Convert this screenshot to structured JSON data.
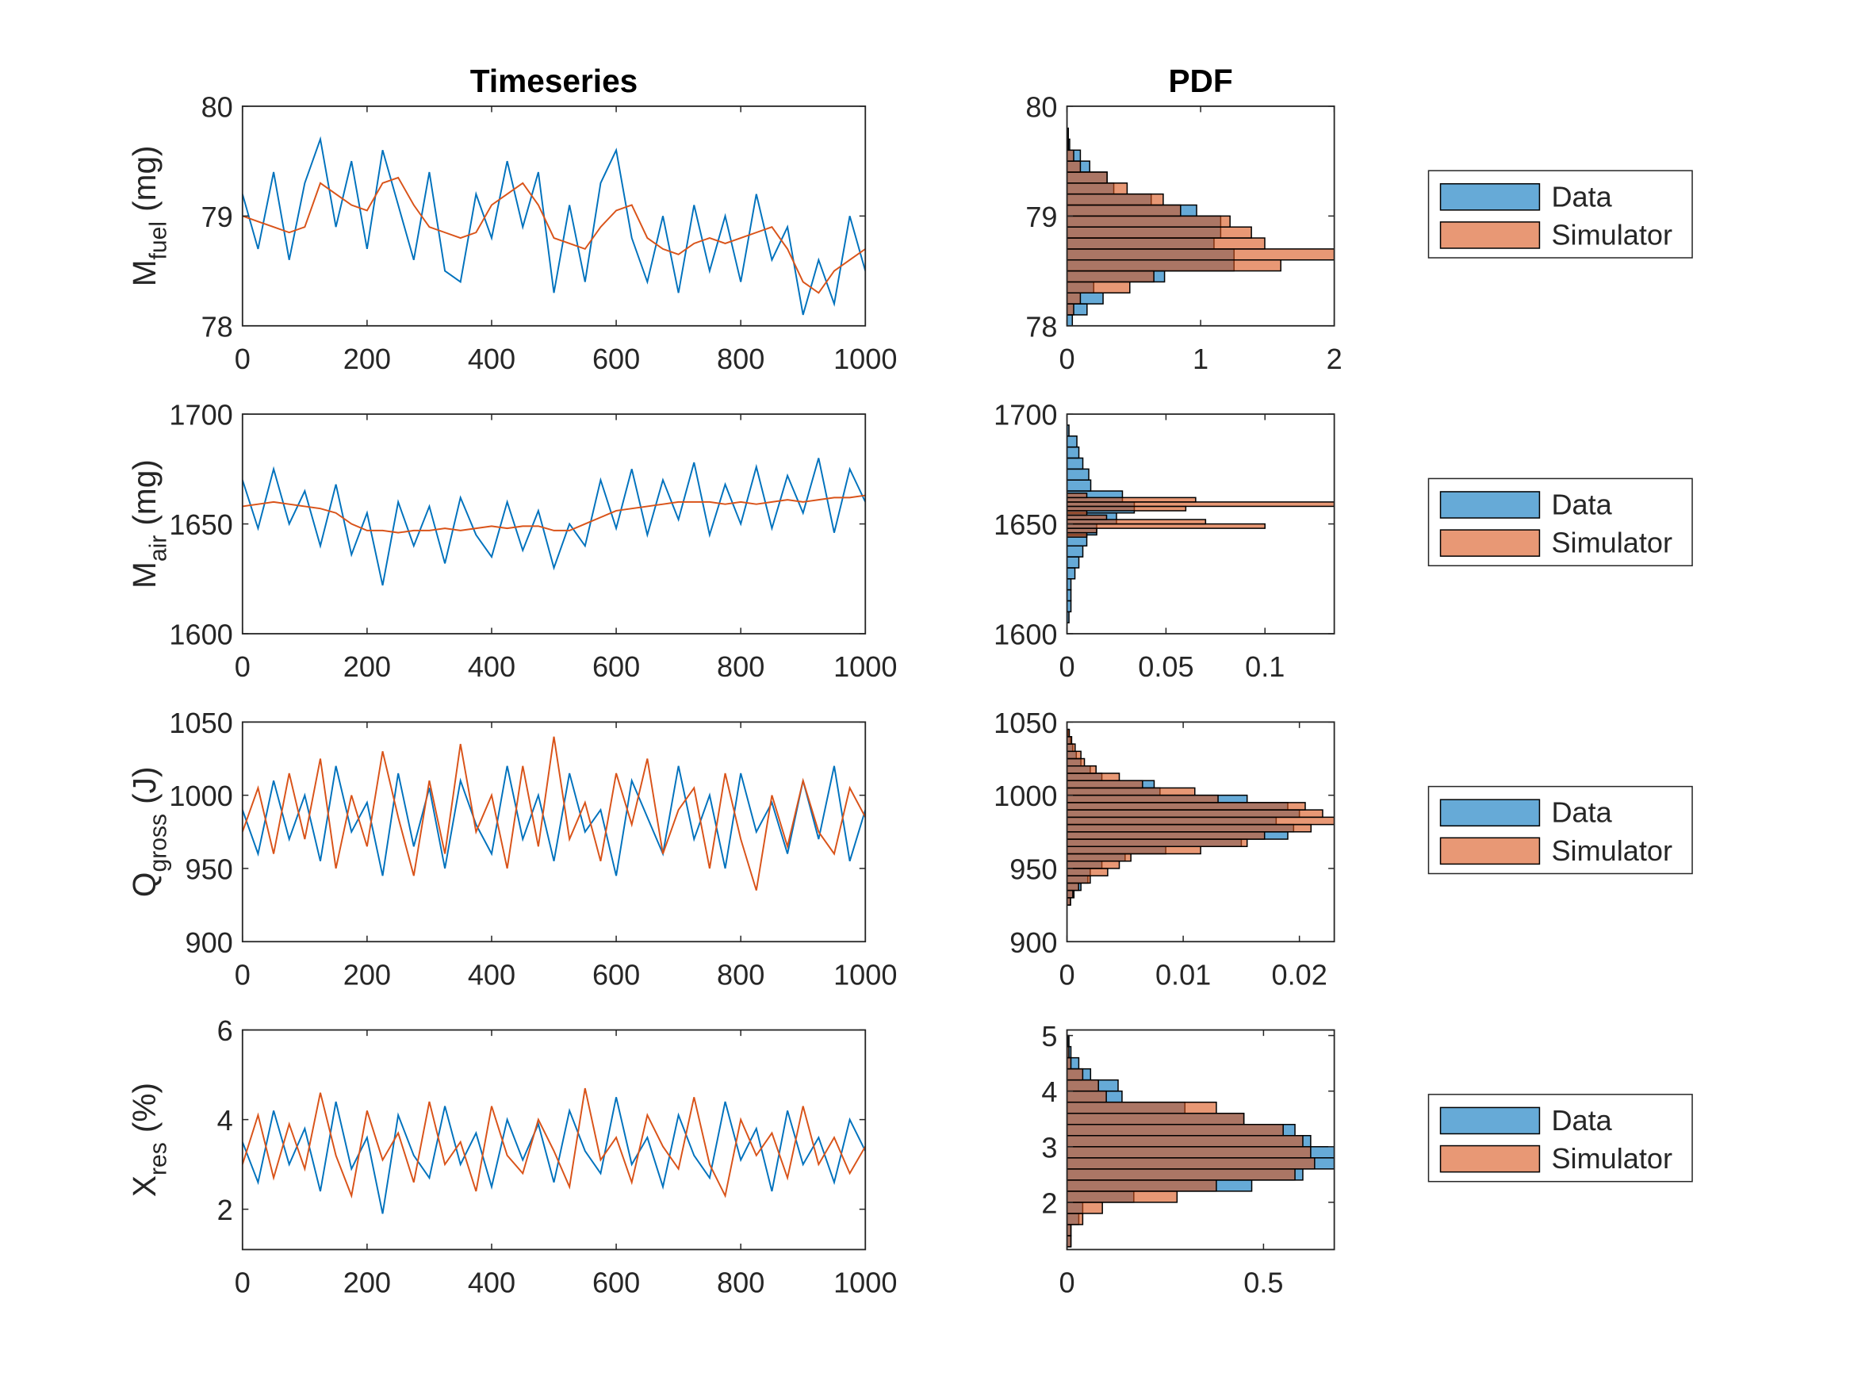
{
  "chart_data": [
    {
      "type": "line",
      "title": "Timeseries",
      "ylabel": {
        "main": "M",
        "sub": "fuel",
        "unit": "(mg)"
      },
      "x": [
        0,
        25,
        50,
        75,
        100,
        125,
        150,
        175,
        200,
        225,
        250,
        275,
        300,
        325,
        350,
        375,
        400,
        425,
        450,
        475,
        500,
        525,
        550,
        575,
        600,
        625,
        650,
        675,
        700,
        725,
        750,
        775,
        800,
        825,
        850,
        875,
        900,
        925,
        950,
        975,
        1000
      ],
      "series": [
        {
          "color": "#0072BD",
          "values": [
            79.2,
            78.7,
            79.4,
            78.6,
            79.3,
            79.7,
            78.9,
            79.5,
            78.7,
            79.6,
            79.1,
            78.6,
            79.4,
            78.5,
            78.4,
            79.2,
            78.8,
            79.5,
            78.9,
            79.4,
            78.3,
            79.1,
            78.4,
            79.3,
            79.6,
            78.8,
            78.4,
            79.0,
            78.3,
            79.1,
            78.5,
            79.0,
            78.4,
            79.2,
            78.6,
            78.9,
            78.1,
            78.6,
            78.2,
            79.0,
            78.5
          ]
        },
        {
          "color": "#D95319",
          "values": [
            79.0,
            78.95,
            78.9,
            78.85,
            78.9,
            79.3,
            79.2,
            79.1,
            79.05,
            79.3,
            79.35,
            79.1,
            78.9,
            78.85,
            78.8,
            78.85,
            79.1,
            79.2,
            79.3,
            79.1,
            78.8,
            78.75,
            78.7,
            78.9,
            79.05,
            79.1,
            78.8,
            78.7,
            78.65,
            78.75,
            78.8,
            78.75,
            78.8,
            78.85,
            78.9,
            78.7,
            78.4,
            78.3,
            78.5,
            78.6,
            78.7
          ]
        }
      ],
      "xlim": [
        0,
        1000
      ],
      "xticks": [
        0,
        200,
        400,
        600,
        800,
        1000
      ],
      "ylim": [
        78,
        80
      ],
      "yticks": [
        78,
        79,
        80
      ],
      "grid": false
    },
    {
      "type": "histogram",
      "orientation": "horizontal",
      "title": "PDF",
      "legend": "east-outside",
      "series": [
        {
          "name": "Data",
          "color": "#0072BD",
          "bins": [
            78.0,
            78.1,
            78.2,
            78.3,
            78.4,
            78.5,
            78.6,
            78.7,
            78.8,
            78.9,
            79.0,
            79.1,
            79.2,
            79.3,
            79.4,
            79.5,
            79.6,
            79.7,
            79.8,
            79.9,
            80.0
          ],
          "values": [
            0.04,
            0.15,
            0.27,
            0.2,
            0.73,
            1.25,
            1.25,
            1.1,
            1.15,
            1.15,
            0.97,
            0.63,
            0.35,
            0.3,
            0.17,
            0.1,
            0.02,
            0.01,
            0,
            0
          ]
        },
        {
          "name": "Simulator",
          "color": "#D95319",
          "bins": [
            78.0,
            78.1,
            78.2,
            78.3,
            78.4,
            78.5,
            78.6,
            78.7,
            78.8,
            78.9,
            79.0,
            79.1,
            79.2,
            79.3,
            79.4,
            79.5,
            79.6,
            79.7,
            79.8,
            79.9,
            80.0
          ],
          "values": [
            0,
            0.05,
            0.1,
            0.47,
            0.65,
            1.6,
            2.0,
            1.48,
            1.38,
            1.22,
            0.85,
            0.72,
            0.45,
            0.3,
            0.1,
            0.05,
            0.01,
            0,
            0,
            0
          ]
        }
      ],
      "xlim": [
        0,
        2
      ],
      "xticks": [
        0,
        1,
        2
      ],
      "ylim": [
        78,
        80
      ],
      "yticks": [
        78,
        79,
        80
      ],
      "grid": false
    },
    {
      "type": "line",
      "ylabel": {
        "main": "M",
        "sub": "air",
        "unit": "(mg)"
      },
      "x": [
        0,
        25,
        50,
        75,
        100,
        125,
        150,
        175,
        200,
        225,
        250,
        275,
        300,
        325,
        350,
        375,
        400,
        425,
        450,
        475,
        500,
        525,
        550,
        575,
        600,
        625,
        650,
        675,
        700,
        725,
        750,
        775,
        800,
        825,
        850,
        875,
        900,
        925,
        950,
        975,
        1000
      ],
      "series": [
        {
          "color": "#0072BD",
          "values": [
            1670,
            1648,
            1675,
            1650,
            1665,
            1640,
            1668,
            1636,
            1655,
            1622,
            1660,
            1640,
            1658,
            1632,
            1662,
            1645,
            1635,
            1660,
            1638,
            1656,
            1630,
            1650,
            1640,
            1670,
            1648,
            1675,
            1645,
            1670,
            1652,
            1678,
            1645,
            1668,
            1650,
            1676,
            1648,
            1672,
            1655,
            1680,
            1646,
            1675,
            1660
          ]
        },
        {
          "color": "#D95319",
          "values": [
            1658,
            1659,
            1660,
            1659,
            1658,
            1657,
            1655,
            1650,
            1647,
            1647,
            1646,
            1647,
            1647,
            1648,
            1647,
            1648,
            1649,
            1648,
            1649,
            1649,
            1647,
            1647,
            1650,
            1653,
            1656,
            1657,
            1658,
            1659,
            1660,
            1660,
            1660,
            1659,
            1660,
            1659,
            1660,
            1661,
            1660,
            1661,
            1662,
            1662,
            1663
          ]
        }
      ],
      "xlim": [
        0,
        1000
      ],
      "xticks": [
        0,
        200,
        400,
        600,
        800,
        1000
      ],
      "ylim": [
        1600,
        1700
      ],
      "yticks": [
        1600,
        1650,
        1700
      ],
      "grid": false
    },
    {
      "type": "histogram",
      "orientation": "horizontal",
      "legend": "east-outside",
      "series": [
        {
          "name": "Data",
          "color": "#0072BD",
          "bins": [
            1605,
            1610,
            1615,
            1620,
            1625,
            1630,
            1635,
            1640,
            1645,
            1650,
            1655,
            1660,
            1665,
            1670,
            1675,
            1680,
            1685,
            1690,
            1695
          ],
          "values": [
            0.001,
            0.002,
            0.002,
            0.002,
            0.004,
            0.006,
            0.008,
            0.01,
            0.015,
            0.025,
            0.034,
            0.028,
            0.012,
            0.011,
            0.008,
            0.006,
            0.005,
            0.001
          ]
        },
        {
          "name": "Simulator",
          "color": "#D95319",
          "bins": [
            1644,
            1646,
            1648,
            1650,
            1652,
            1654,
            1656,
            1658,
            1660,
            1662,
            1664
          ],
          "values": [
            0.01,
            0.015,
            0.1,
            0.07,
            0.02,
            0.01,
            0.06,
            0.135,
            0.065,
            0.01
          ]
        }
      ],
      "xlim": [
        0,
        0.135
      ],
      "xticks": [
        0,
        0.05,
        0.1
      ],
      "ylim": [
        1600,
        1700
      ],
      "yticks": [
        1600,
        1650,
        1700
      ],
      "grid": false
    },
    {
      "type": "line",
      "ylabel": {
        "main": "Q",
        "sub": "gross",
        "unit": "(J)"
      },
      "x": [
        0,
        25,
        50,
        75,
        100,
        125,
        150,
        175,
        200,
        225,
        250,
        275,
        300,
        325,
        350,
        375,
        400,
        425,
        450,
        475,
        500,
        525,
        550,
        575,
        600,
        625,
        650,
        675,
        700,
        725,
        750,
        775,
        800,
        825,
        850,
        875,
        900,
        925,
        950,
        975,
        1000
      ],
      "series": [
        {
          "color": "#0072BD",
          "values": [
            990,
            960,
            1010,
            970,
            1000,
            955,
            1020,
            975,
            995,
            945,
            1015,
            965,
            1005,
            950,
            1010,
            980,
            960,
            1020,
            970,
            1000,
            955,
            1015,
            975,
            990,
            945,
            1010,
            985,
            960,
            1020,
            970,
            1000,
            950,
            1015,
            975,
            995,
            960,
            1010,
            970,
            1020,
            955,
            990
          ]
        },
        {
          "color": "#D95319",
          "values": [
            975,
            1005,
            960,
            1015,
            970,
            1025,
            950,
            1000,
            965,
            1030,
            985,
            945,
            1010,
            960,
            1035,
            975,
            1000,
            950,
            1020,
            965,
            1040,
            970,
            995,
            955,
            1015,
            980,
            1025,
            960,
            990,
            1005,
            950,
            1015,
            970,
            935,
            1000,
            965,
            1010,
            975,
            960,
            1005,
            985
          ]
        }
      ],
      "xlim": [
        0,
        1000
      ],
      "xticks": [
        0,
        200,
        400,
        600,
        800,
        1000
      ],
      "ylim": [
        900,
        1050
      ],
      "yticks": [
        900,
        950,
        1000,
        1050
      ],
      "grid": false
    },
    {
      "type": "histogram",
      "orientation": "horizontal",
      "legend": "east-outside",
      "series": [
        {
          "name": "Data",
          "color": "#0072BD",
          "bins": [
            925,
            930,
            935,
            940,
            945,
            950,
            955,
            960,
            965,
            970,
            975,
            980,
            985,
            990,
            995,
            1000,
            1005,
            1010,
            1015,
            1020,
            1025,
            1030,
            1035,
            1040,
            1045
          ],
          "values": [
            0.0003,
            0.0006,
            0.0012,
            0.0018,
            0.002,
            0.003,
            0.005,
            0.0085,
            0.015,
            0.019,
            0.0195,
            0.018,
            0.02,
            0.019,
            0.0155,
            0.008,
            0.0075,
            0.003,
            0.002,
            0.0012,
            0.0008,
            0.0005,
            0.0003,
            0.0001
          ]
        },
        {
          "name": "Simulator",
          "color": "#D95319",
          "bins": [
            925,
            930,
            935,
            940,
            945,
            950,
            955,
            960,
            965,
            970,
            975,
            980,
            985,
            990,
            995,
            1000,
            1005,
            1010,
            1015,
            1020,
            1025,
            1030,
            1035,
            1040,
            1045
          ],
          "values": [
            0.0003,
            0.0005,
            0.001,
            0.002,
            0.0035,
            0.0045,
            0.0055,
            0.0115,
            0.0155,
            0.017,
            0.021,
            0.023,
            0.022,
            0.0205,
            0.013,
            0.011,
            0.0065,
            0.0045,
            0.0025,
            0.0015,
            0.0012,
            0.0007,
            0.0004,
            0.0002
          ]
        }
      ],
      "xlim": [
        0,
        0.023
      ],
      "xticks": [
        0,
        0.01,
        0.02
      ],
      "ylim": [
        900,
        1050
      ],
      "yticks": [
        900,
        950,
        1000,
        1050
      ],
      "grid": false
    },
    {
      "type": "line",
      "ylabel": {
        "main": "X",
        "sub": "res",
        "unit": "(%)"
      },
      "x": [
        0,
        25,
        50,
        75,
        100,
        125,
        150,
        175,
        200,
        225,
        250,
        275,
        300,
        325,
        350,
        375,
        400,
        425,
        450,
        475,
        500,
        525,
        550,
        575,
        600,
        625,
        650,
        675,
        700,
        725,
        750,
        775,
        800,
        825,
        850,
        875,
        900,
        925,
        950,
        975,
        1000
      ],
      "series": [
        {
          "color": "#0072BD",
          "values": [
            3.5,
            2.6,
            4.2,
            3.0,
            3.8,
            2.4,
            4.4,
            2.9,
            3.6,
            1.9,
            4.1,
            3.2,
            2.7,
            4.3,
            3.0,
            3.7,
            2.5,
            4.0,
            3.1,
            3.9,
            2.6,
            4.2,
            3.3,
            2.8,
            4.5,
            3.0,
            3.6,
            2.5,
            4.1,
            3.2,
            2.7,
            4.4,
            3.1,
            3.8,
            2.4,
            4.2,
            3.0,
            3.6,
            2.6,
            4.0,
            3.3
          ]
        },
        {
          "color": "#D95319",
          "values": [
            3.0,
            4.1,
            2.7,
            3.9,
            2.9,
            4.6,
            3.2,
            2.3,
            4.2,
            3.1,
            3.7,
            2.6,
            4.4,
            3.0,
            3.5,
            2.4,
            4.3,
            3.2,
            2.8,
            4.0,
            3.3,
            2.5,
            4.7,
            3.1,
            3.6,
            2.6,
            4.1,
            3.4,
            2.9,
            4.5,
            3.0,
            2.3,
            4.0,
            3.2,
            3.7,
            2.7,
            4.3,
            3.0,
            3.6,
            2.8,
            3.4
          ]
        }
      ],
      "xlim": [
        0,
        1000
      ],
      "xticks": [
        0,
        200,
        400,
        600,
        800,
        1000
      ],
      "ylim": [
        1.1,
        6
      ],
      "yticks": [
        2,
        4,
        6
      ],
      "grid": false
    },
    {
      "type": "histogram",
      "orientation": "horizontal",
      "legend": "east-outside",
      "series": [
        {
          "name": "Data",
          "color": "#0072BD",
          "bins": [
            1.2,
            1.4,
            1.6,
            1.8,
            2.0,
            2.2,
            2.4,
            2.6,
            2.8,
            3.0,
            3.2,
            3.4,
            3.6,
            3.8,
            4.0,
            4.2,
            4.4,
            4.6,
            4.8,
            5.0
          ],
          "values": [
            0.01,
            0.01,
            0.03,
            0.04,
            0.17,
            0.47,
            0.6,
            0.68,
            0.68,
            0.62,
            0.58,
            0.45,
            0.3,
            0.14,
            0.13,
            0.06,
            0.03,
            0.01,
            0.005
          ]
        },
        {
          "name": "Simulator",
          "color": "#D95319",
          "bins": [
            1.2,
            1.4,
            1.6,
            1.8,
            2.0,
            2.2,
            2.4,
            2.6,
            2.8,
            3.0,
            3.2,
            3.4,
            3.6,
            3.8,
            4.0,
            4.2,
            4.4,
            4.6,
            4.8,
            5.0
          ],
          "values": [
            0.01,
            0.01,
            0.04,
            0.09,
            0.28,
            0.38,
            0.58,
            0.63,
            0.62,
            0.6,
            0.55,
            0.45,
            0.38,
            0.1,
            0.08,
            0.04,
            0.01,
            0.005,
            0.002
          ]
        }
      ],
      "xlim": [
        0,
        0.68
      ],
      "xticks": [
        0,
        0.5
      ],
      "ylim": [
        1.15,
        5.1
      ],
      "yticks": [
        2,
        3,
        4,
        5
      ],
      "grid": false
    }
  ]
}
